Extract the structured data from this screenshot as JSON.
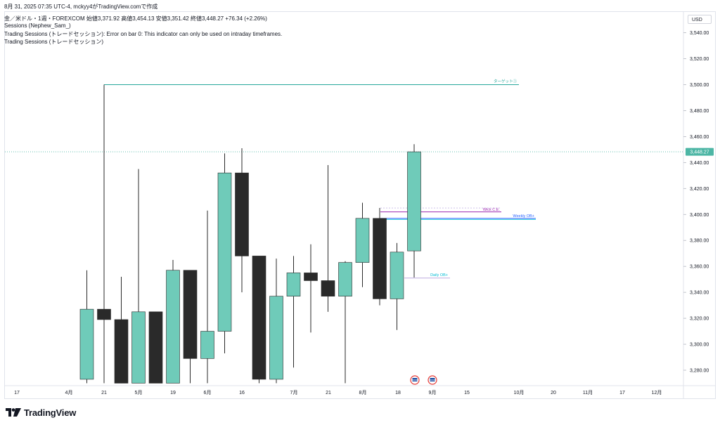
{
  "header": {
    "datetime_line": "8月 31, 2025 07:35 UTC-4, mckyy4がTradingView.comで作成",
    "symbol_line": "金／米ドル・1週・FOREXCOM  始値3,371.92  高値3,454.13  安値3,351.42  終値3,448.27  +76.34 (+2.26%)",
    "indicators": [
      "Sessions (Nephew_Sam_)",
      "Trading Sessions (トレードセッション): Error on bar 0: This indicator can only be used on intraday timeframes.",
      "Trading Sessions (トレードセッション)"
    ]
  },
  "price_axis": {
    "currency": "USD",
    "labels": [
      "3,540.00",
      "3,520.00",
      "3,500.00",
      "3,480.00",
      "3,460.00",
      "3,440.00",
      "3,420.00",
      "3,400.00",
      "3,380.00",
      "3,360.00",
      "3,340.00",
      "3,320.00",
      "3,300.00",
      "3,280.00"
    ],
    "current_price": "3,448.27"
  },
  "time_axis": {
    "labels": [
      "17",
      "4月",
      "21",
      "5月",
      "19",
      "6月",
      "16",
      "7月",
      "21",
      "8月",
      "18",
      "9月",
      "15",
      "10月",
      "20",
      "11月",
      "17",
      "12月"
    ]
  },
  "annotations": {
    "target": "ターゲット①",
    "weekly_ob": "Weekly OB+",
    "wick_ce": "Wick C.E.",
    "daily_ob": "Daily OB+"
  },
  "brand": {
    "name": "TradingView"
  },
  "chart_data": {
    "type": "candlestick",
    "symbol": "金／米ドル",
    "timeframe": "1週",
    "exchange": "FOREXCOM",
    "currency": "USD",
    "ylim": [
      3270,
      3550
    ],
    "current_price": 3448.27,
    "candles": [
      {
        "o": 3273,
        "h": 3357,
        "l": 3270,
        "c": 3327
      },
      {
        "o": 3327,
        "h": 3500,
        "l": 3270,
        "c": 3319
      },
      {
        "o": 3319,
        "h": 3352,
        "l": 3270,
        "c": 3270
      },
      {
        "o": 3270,
        "h": 3435,
        "l": 3270,
        "c": 3325
      },
      {
        "o": 3325,
        "h": 3325,
        "l": 3270,
        "c": 3270
      },
      {
        "o": 3270,
        "h": 3365,
        "l": 3270,
        "c": 3357
      },
      {
        "o": 3357,
        "h": 3357,
        "l": 3270,
        "c": 3289
      },
      {
        "o": 3289,
        "h": 3403,
        "l": 3270,
        "c": 3310
      },
      {
        "o": 3310,
        "h": 3447,
        "l": 3293,
        "c": 3432
      },
      {
        "o": 3432,
        "h": 3451,
        "l": 3340,
        "c": 3368
      },
      {
        "o": 3368,
        "h": 3368,
        "l": 3270,
        "c": 3273
      },
      {
        "o": 3273,
        "h": 3366,
        "l": 3270,
        "c": 3337
      },
      {
        "o": 3337,
        "h": 3368,
        "l": 3282,
        "c": 3355
      },
      {
        "o": 3355,
        "h": 3377,
        "l": 3309,
        "c": 3349
      },
      {
        "o": 3349,
        "h": 3438,
        "l": 3325,
        "c": 3337
      },
      {
        "o": 3337,
        "h": 3364,
        "l": 3270,
        "c": 3363
      },
      {
        "o": 3363,
        "h": 3409,
        "l": 3344,
        "c": 3397
      },
      {
        "o": 3397,
        "h": 3405,
        "l": 3330,
        "c": 3335
      },
      {
        "o": 3335,
        "h": 3378,
        "l": 3311,
        "c": 3371
      },
      {
        "o": 3371.92,
        "h": 3454.13,
        "l": 3351.42,
        "c": 3448.27
      }
    ],
    "levels": {
      "target": 3500,
      "weekly_ob": 3397,
      "wick_ce_top": 3405,
      "wick_ce": 3402,
      "daily_ob": 3351
    },
    "colors": {
      "up": "#6fcbb9",
      "down": "#2a2a2a",
      "target_line": "#26a69a",
      "weekly_ob": "#2962ff",
      "wick_ce": "#9c27b0",
      "daily_ob": "#00bcd4",
      "price_tag": "#4db6a5"
    }
  }
}
